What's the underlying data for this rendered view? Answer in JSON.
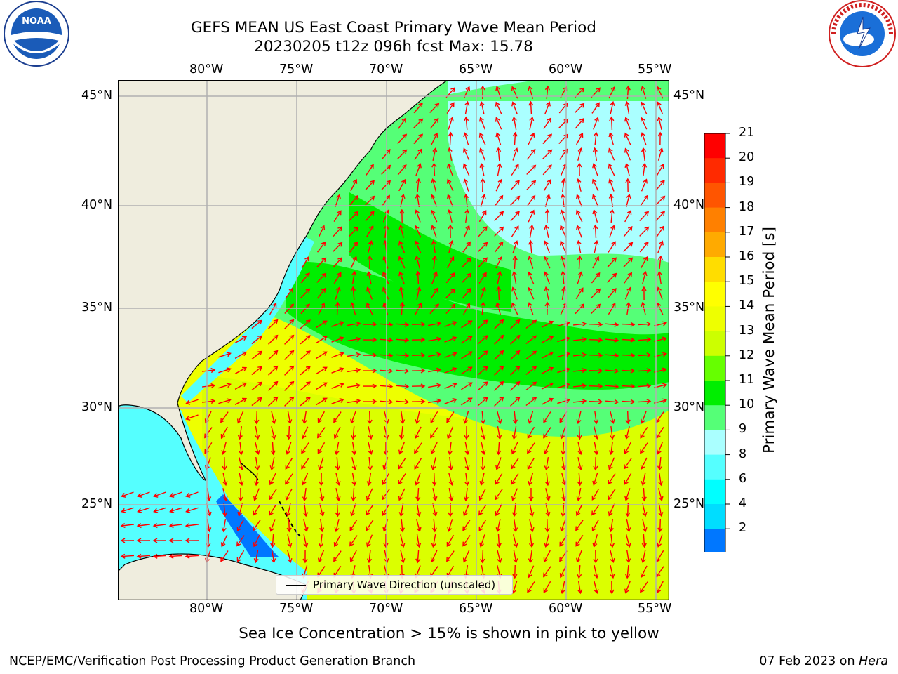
{
  "title": {
    "line1": "GEFS MEAN US East Coast Primary Wave Mean Period",
    "line2": "20230205 t12z 096h fcst   Max: 15.78"
  },
  "logos": {
    "left": "NOAA",
    "right": "NATIONAL WEATHER SERVICE"
  },
  "axes": {
    "lon_labels": [
      "80°W",
      "75°W",
      "70°W",
      "65°W",
      "60°W",
      "55°W"
    ],
    "lat_labels": [
      "45°N",
      "40°N",
      "35°N",
      "30°N",
      "25°N"
    ]
  },
  "legend": {
    "label": "Primary Wave Direction (unscaled)"
  },
  "colorbar": {
    "label": "Primary Wave Mean Period [s]",
    "ticks": [
      "21",
      "20",
      "19",
      "18",
      "17",
      "16",
      "15",
      "14",
      "13",
      "12",
      "11",
      "10",
      "9",
      "8",
      "6",
      "4",
      "2"
    ],
    "colors": [
      "#ff0000",
      "#ff2a00",
      "#ff5500",
      "#ff8000",
      "#ffaa00",
      "#ffdd00",
      "#ffff00",
      "#eeff00",
      "#ccff00",
      "#66ff00",
      "#00ee00",
      "#55ff77",
      "#aaffff",
      "#55ffff",
      "#00ffff",
      "#00ddff",
      "#0077ff"
    ],
    "extend_color": "#0000ff"
  },
  "subtitle": "Sea Ice Concentration > 15% is shown in pink to yellow",
  "footer": {
    "left": "NCEP/EMC/Verification Post Processing Product Generation Branch",
    "right_prefix": "07 Feb 2023 on ",
    "right_host": "Hera"
  },
  "colors": {
    "arrow": "#ff0000",
    "land": "#efedde",
    "grid": "#b0b0b0"
  }
}
